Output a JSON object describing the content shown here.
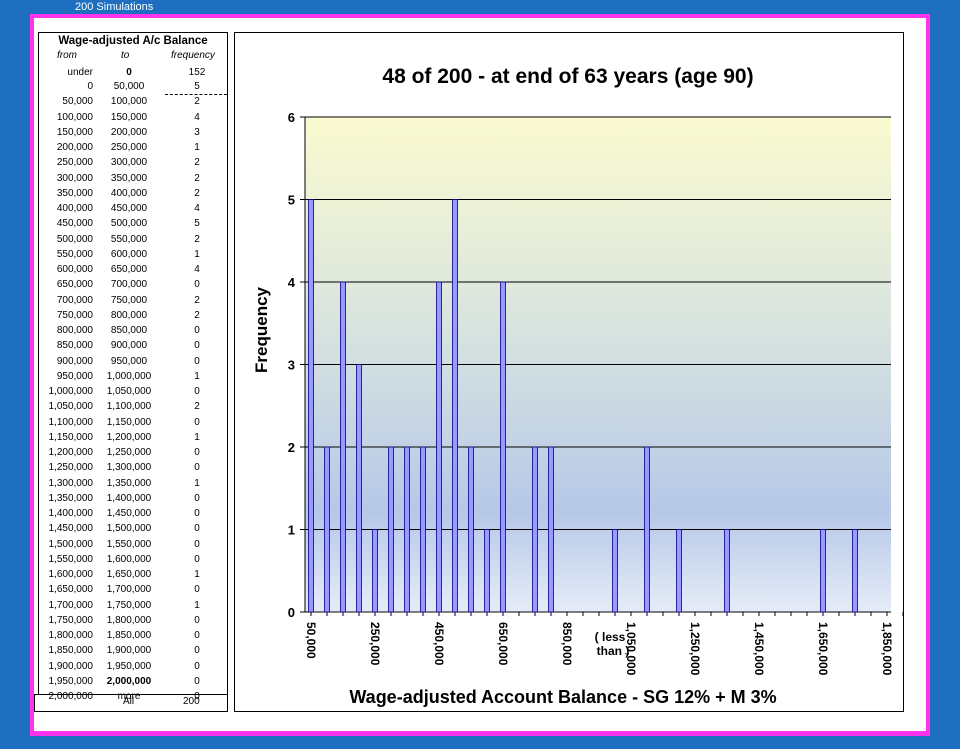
{
  "sheet_label": "200 Simulations",
  "table": {
    "title": "Wage-adjusted A/c Balance",
    "headers": {
      "from": "from",
      "to": "to",
      "frequency": "frequency"
    },
    "under_row": {
      "from": "under",
      "to": "0",
      "frequency": "152"
    },
    "rows": [
      {
        "from": "0",
        "to": "50,000",
        "frequency": "5"
      },
      {
        "from": "50,000",
        "to": "100,000",
        "frequency": "2"
      },
      {
        "from": "100,000",
        "to": "150,000",
        "frequency": "4"
      },
      {
        "from": "150,000",
        "to": "200,000",
        "frequency": "3"
      },
      {
        "from": "200,000",
        "to": "250,000",
        "frequency": "1"
      },
      {
        "from": "250,000",
        "to": "300,000",
        "frequency": "2"
      },
      {
        "from": "300,000",
        "to": "350,000",
        "frequency": "2"
      },
      {
        "from": "350,000",
        "to": "400,000",
        "frequency": "2"
      },
      {
        "from": "400,000",
        "to": "450,000",
        "frequency": "4"
      },
      {
        "from": "450,000",
        "to": "500,000",
        "frequency": "5"
      },
      {
        "from": "500,000",
        "to": "550,000",
        "frequency": "2"
      },
      {
        "from": "550,000",
        "to": "600,000",
        "frequency": "1"
      },
      {
        "from": "600,000",
        "to": "650,000",
        "frequency": "4"
      },
      {
        "from": "650,000",
        "to": "700,000",
        "frequency": "0"
      },
      {
        "from": "700,000",
        "to": "750,000",
        "frequency": "2"
      },
      {
        "from": "750,000",
        "to": "800,000",
        "frequency": "2"
      },
      {
        "from": "800,000",
        "to": "850,000",
        "frequency": "0"
      },
      {
        "from": "850,000",
        "to": "900,000",
        "frequency": "0"
      },
      {
        "from": "900,000",
        "to": "950,000",
        "frequency": "0"
      },
      {
        "from": "950,000",
        "to": "1,000,000",
        "frequency": "1"
      },
      {
        "from": "1,000,000",
        "to": "1,050,000",
        "frequency": "0"
      },
      {
        "from": "1,050,000",
        "to": "1,100,000",
        "frequency": "2"
      },
      {
        "from": "1,100,000",
        "to": "1,150,000",
        "frequency": "0"
      },
      {
        "from": "1,150,000",
        "to": "1,200,000",
        "frequency": "1"
      },
      {
        "from": "1,200,000",
        "to": "1,250,000",
        "frequency": "0"
      },
      {
        "from": "1,250,000",
        "to": "1,300,000",
        "frequency": "0"
      },
      {
        "from": "1,300,000",
        "to": "1,350,000",
        "frequency": "1"
      },
      {
        "from": "1,350,000",
        "to": "1,400,000",
        "frequency": "0"
      },
      {
        "from": "1,400,000",
        "to": "1,450,000",
        "frequency": "0"
      },
      {
        "from": "1,450,000",
        "to": "1,500,000",
        "frequency": "0"
      },
      {
        "from": "1,500,000",
        "to": "1,550,000",
        "frequency": "0"
      },
      {
        "from": "1,550,000",
        "to": "1,600,000",
        "frequency": "0"
      },
      {
        "from": "1,600,000",
        "to": "1,650,000",
        "frequency": "1"
      },
      {
        "from": "1,650,000",
        "to": "1,700,000",
        "frequency": "0"
      },
      {
        "from": "1,700,000",
        "to": "1,750,000",
        "frequency": "1"
      },
      {
        "from": "1,750,000",
        "to": "1,800,000",
        "frequency": "0"
      },
      {
        "from": "1,800,000",
        "to": "1,850,000",
        "frequency": "0"
      },
      {
        "from": "1,850,000",
        "to": "1,900,000",
        "frequency": "0"
      },
      {
        "from": "1,900,000",
        "to": "1,950,000",
        "frequency": "0"
      },
      {
        "from": "1,950,000",
        "to": "2,000,000",
        "frequency": "0"
      },
      {
        "from": "2,000,000",
        "to": "more",
        "frequency": "0"
      }
    ],
    "total": {
      "label": "All",
      "frequency": "200"
    }
  },
  "colors": {
    "bar_fill": "#9999ff",
    "bar_stroke": "#000080",
    "frame": "#ff33ee",
    "background": "#1f6fc0"
  },
  "chart_data": {
    "type": "bar",
    "title": "48 of 200  -  at end of 63 years (age 90)",
    "xlabel": "Wage-adjusted Account Balance  -  SG 12% + M 3%",
    "ylabel": "Frequency",
    "ylim": [
      0,
      6
    ],
    "yticks": [
      "0",
      "1",
      "2",
      "3",
      "4",
      "5",
      "6"
    ],
    "grid": true,
    "categories": [
      "50,000",
      "100,000",
      "150,000",
      "200,000",
      "250,000",
      "300,000",
      "350,000",
      "400,000",
      "450,000",
      "500,000",
      "550,000",
      "600,000",
      "650,000",
      "700,000",
      "750,000",
      "800,000",
      "850,000",
      "900,000",
      "950,000",
      "1,000,000",
      "1,050,000",
      "1,100,000",
      "1,150,000",
      "1,200,000",
      "1,250,000",
      "1,300,000",
      "1,350,000",
      "1,400,000",
      "1,450,000",
      "1,500,000",
      "1,550,000",
      "1,600,000",
      "1,650,000",
      "1,700,000",
      "1,750,000",
      "1,800,000",
      "1,850,000",
      "1,900,000",
      "1,950,000"
    ],
    "values": [
      5,
      2,
      4,
      3,
      1,
      2,
      2,
      2,
      4,
      5,
      2,
      1,
      4,
      0,
      2,
      2,
      0,
      0,
      0,
      1,
      0,
      2,
      0,
      1,
      0,
      0,
      1,
      0,
      0,
      0,
      0,
      0,
      1,
      0,
      1,
      0,
      0,
      0,
      0
    ],
    "xtick_labels": [
      "50,000",
      "250,000",
      "450,000",
      "650,000",
      "850,000",
      "1,050,000",
      "1,250,000",
      "1,450,000",
      "1,650,000",
      "1,850,000"
    ],
    "annotation": "( less than )"
  }
}
